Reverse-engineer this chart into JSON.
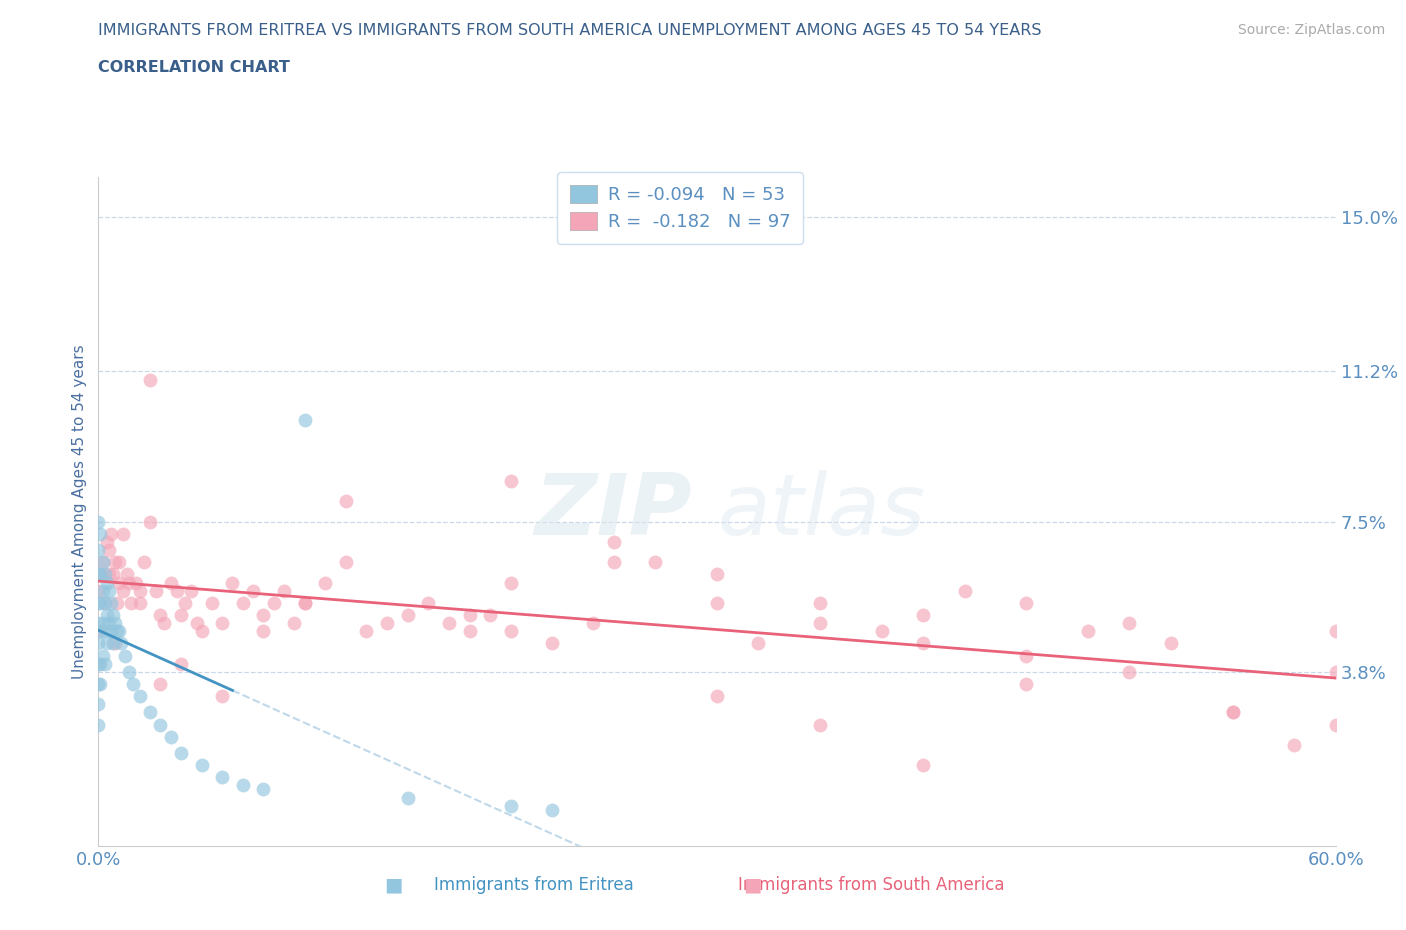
{
  "title_line1": "IMMIGRANTS FROM ERITREA VS IMMIGRANTS FROM SOUTH AMERICA UNEMPLOYMENT AMONG AGES 45 TO 54 YEARS",
  "title_line2": "CORRELATION CHART",
  "source_text": "Source: ZipAtlas.com",
  "ylabel": "Unemployment Among Ages 45 to 54 years",
  "xlim": [
    0.0,
    0.6
  ],
  "ylim": [
    -0.005,
    0.16
  ],
  "yticks": [
    0.038,
    0.075,
    0.112,
    0.15
  ],
  "ytick_labels": [
    "3.8%",
    "7.5%",
    "11.2%",
    "15.0%"
  ],
  "xtick_labels": [
    "0.0%",
    "60.0%"
  ],
  "xticks": [
    0.0,
    0.6
  ],
  "eritrea_color": "#92c5de",
  "south_america_color": "#f4a6b8",
  "eritrea_trend_color": "#4393c3",
  "south_america_trend_color": "#e8637a",
  "eritrea_dashed_color": "#b8d4e8",
  "watermark": "ZIPatlas",
  "title_color": "#3a5f8a",
  "axis_label_color": "#4a6fa0",
  "tick_color": "#5a8fc0",
  "background_color": "#ffffff",
  "grid_color": "#c8d8e8",
  "legend_label_color": "#333333",
  "legend_R_color": "#4393c3",
  "bottom_eritrea_label": "Immigrants from Eritrea",
  "bottom_sa_label": "Immigrants from South America",
  "eritrea_scatter_x": [
    0.0,
    0.0,
    0.0,
    0.0,
    0.0,
    0.0,
    0.0,
    0.0,
    0.0,
    0.0,
    0.001,
    0.001,
    0.001,
    0.001,
    0.001,
    0.001,
    0.002,
    0.002,
    0.002,
    0.002,
    0.003,
    0.003,
    0.003,
    0.003,
    0.004,
    0.004,
    0.004,
    0.005,
    0.005,
    0.006,
    0.006,
    0.007,
    0.007,
    0.008,
    0.009,
    0.01,
    0.011,
    0.013,
    0.015,
    0.017,
    0.02,
    0.025,
    0.03,
    0.035,
    0.04,
    0.05,
    0.06,
    0.07,
    0.08,
    0.1,
    0.15,
    0.2,
    0.22
  ],
  "eritrea_scatter_y": [
    0.075,
    0.068,
    0.062,
    0.055,
    0.05,
    0.045,
    0.04,
    0.035,
    0.03,
    0.025,
    0.072,
    0.062,
    0.055,
    0.048,
    0.04,
    0.035,
    0.065,
    0.058,
    0.05,
    0.042,
    0.062,
    0.055,
    0.048,
    0.04,
    0.06,
    0.052,
    0.045,
    0.058,
    0.05,
    0.055,
    0.048,
    0.052,
    0.045,
    0.05,
    0.048,
    0.048,
    0.045,
    0.042,
    0.038,
    0.035,
    0.032,
    0.028,
    0.025,
    0.022,
    0.018,
    0.015,
    0.012,
    0.01,
    0.009,
    0.1,
    0.007,
    0.005,
    0.004
  ],
  "south_america_scatter_x": [
    0.0,
    0.0,
    0.001,
    0.002,
    0.003,
    0.004,
    0.005,
    0.006,
    0.007,
    0.008,
    0.009,
    0.01,
    0.012,
    0.014,
    0.016,
    0.018,
    0.02,
    0.022,
    0.025,
    0.028,
    0.03,
    0.032,
    0.035,
    0.038,
    0.04,
    0.042,
    0.045,
    0.048,
    0.05,
    0.055,
    0.06,
    0.065,
    0.07,
    0.075,
    0.08,
    0.085,
    0.09,
    0.095,
    0.1,
    0.11,
    0.12,
    0.13,
    0.14,
    0.15,
    0.16,
    0.17,
    0.18,
    0.19,
    0.2,
    0.22,
    0.24,
    0.25,
    0.27,
    0.3,
    0.32,
    0.35,
    0.38,
    0.4,
    0.42,
    0.45,
    0.48,
    0.5,
    0.52,
    0.55,
    0.58,
    0.6,
    0.6,
    0.6,
    0.025,
    0.12,
    0.18,
    0.2,
    0.3,
    0.35,
    0.4,
    0.45,
    0.5,
    0.55,
    0.3,
    0.35,
    0.4,
    0.45,
    0.2,
    0.25,
    0.1,
    0.08,
    0.06,
    0.04,
    0.03,
    0.02,
    0.015,
    0.01,
    0.005,
    0.008,
    0.012
  ],
  "south_america_scatter_y": [
    0.058,
    0.048,
    0.062,
    0.065,
    0.055,
    0.07,
    0.068,
    0.072,
    0.062,
    0.065,
    0.055,
    0.06,
    0.058,
    0.062,
    0.055,
    0.06,
    0.055,
    0.065,
    0.11,
    0.058,
    0.052,
    0.05,
    0.06,
    0.058,
    0.052,
    0.055,
    0.058,
    0.05,
    0.048,
    0.055,
    0.05,
    0.06,
    0.055,
    0.058,
    0.052,
    0.055,
    0.058,
    0.05,
    0.055,
    0.06,
    0.065,
    0.048,
    0.05,
    0.052,
    0.055,
    0.05,
    0.048,
    0.052,
    0.085,
    0.045,
    0.05,
    0.07,
    0.065,
    0.055,
    0.045,
    0.05,
    0.048,
    0.052,
    0.058,
    0.055,
    0.048,
    0.05,
    0.045,
    0.028,
    0.02,
    0.048,
    0.038,
    0.025,
    0.075,
    0.08,
    0.052,
    0.048,
    0.032,
    0.025,
    0.015,
    0.042,
    0.038,
    0.028,
    0.062,
    0.055,
    0.045,
    0.035,
    0.06,
    0.065,
    0.055,
    0.048,
    0.032,
    0.04,
    0.035,
    0.058,
    0.06,
    0.065,
    0.062,
    0.045,
    0.072
  ]
}
